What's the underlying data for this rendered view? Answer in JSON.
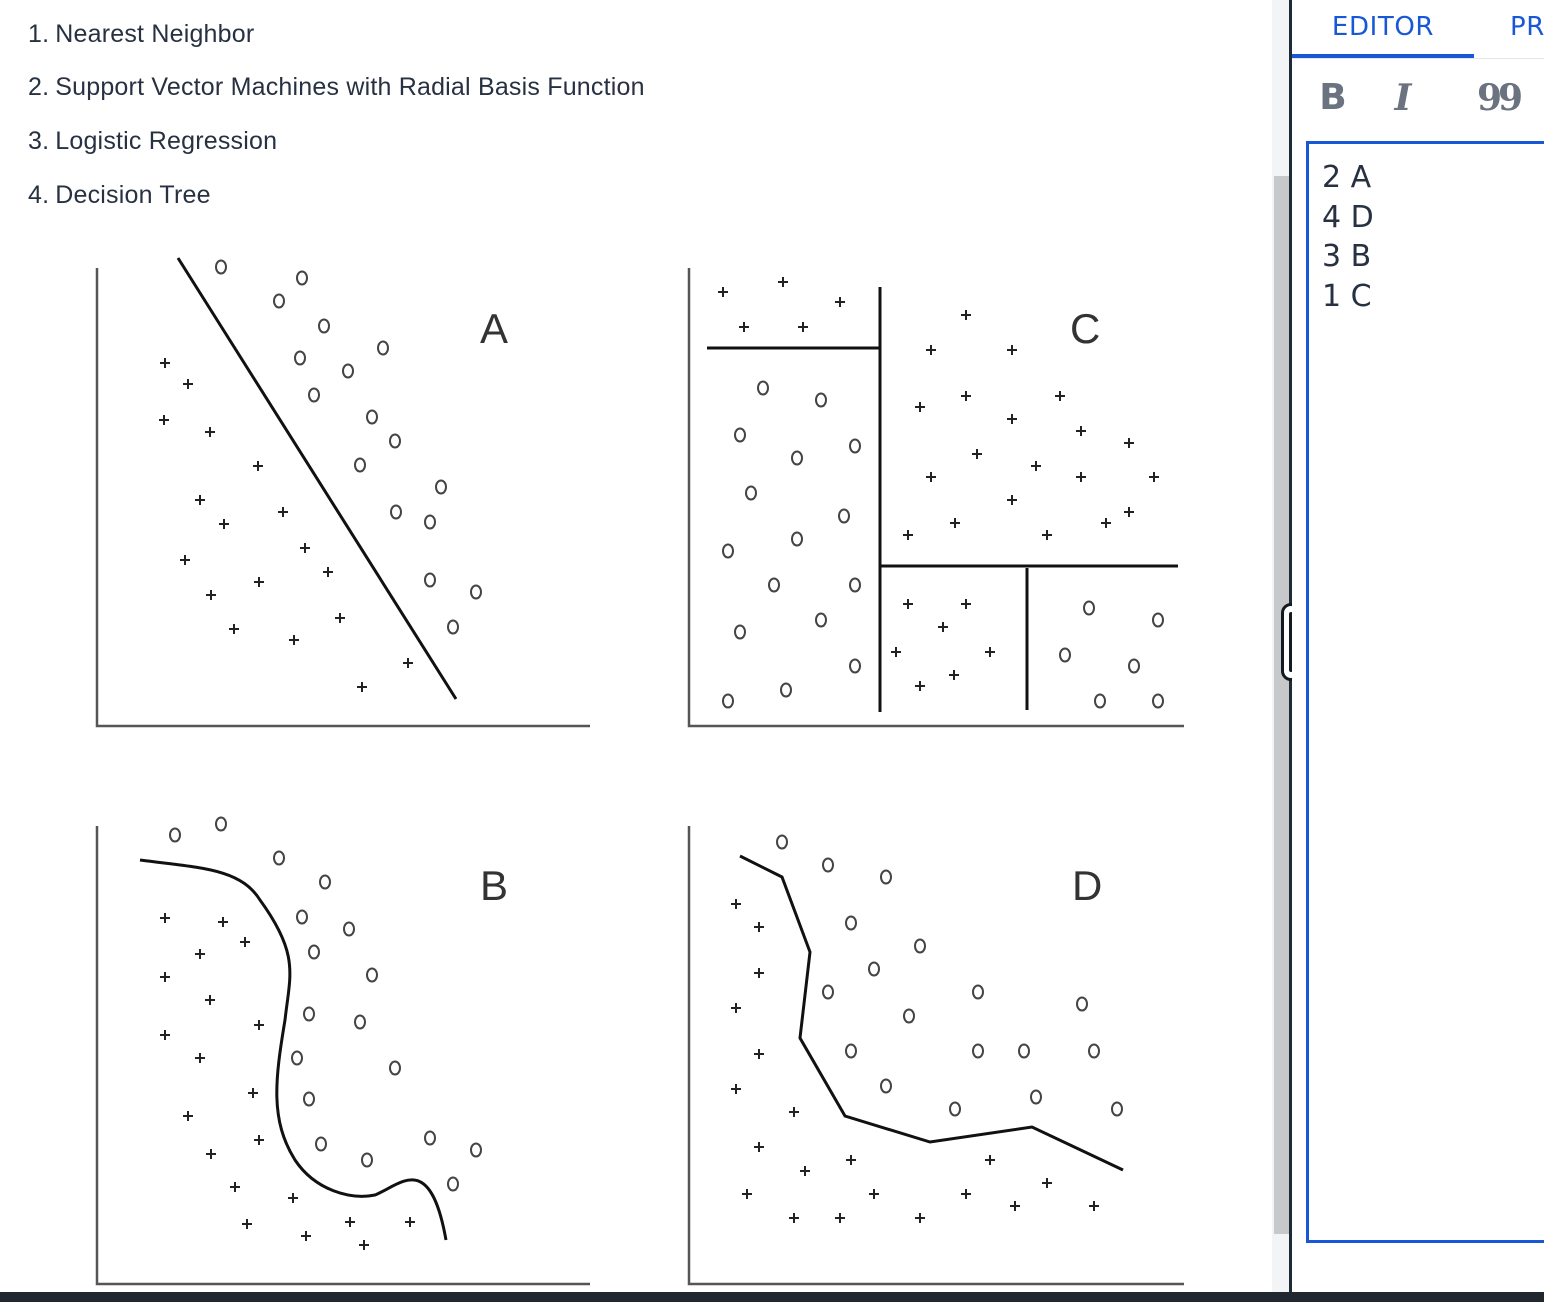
{
  "question_list": [
    {
      "num": "1.",
      "label": "Nearest Neighbor"
    },
    {
      "num": "2.",
      "label": "Support Vector Machines with Radial Basis Function"
    },
    {
      "num": "3.",
      "label": "Logistic Regression"
    },
    {
      "num": "4.",
      "label": "Decision Tree"
    }
  ],
  "figures": {
    "A": {
      "label": "A",
      "boundary": "linear"
    },
    "B": {
      "label": "B",
      "boundary": "smooth-curve"
    },
    "C": {
      "label": "C",
      "boundary": "axis-aligned"
    },
    "D": {
      "label": "D",
      "boundary": "piecewise-linear"
    }
  },
  "markers": {
    "circle": "o",
    "plus": "+"
  },
  "editor": {
    "tabs": [
      "EDITOR",
      "PR"
    ],
    "active_tab": "EDITOR",
    "toolbar": {
      "bold": "B",
      "italic": "I",
      "quote": "99"
    },
    "lines": [
      "2 A",
      "4 D",
      "3 B",
      "1 C"
    ]
  },
  "colors": {
    "accent": "#1858d6",
    "text": "#273142",
    "icon": "#6b7280"
  }
}
